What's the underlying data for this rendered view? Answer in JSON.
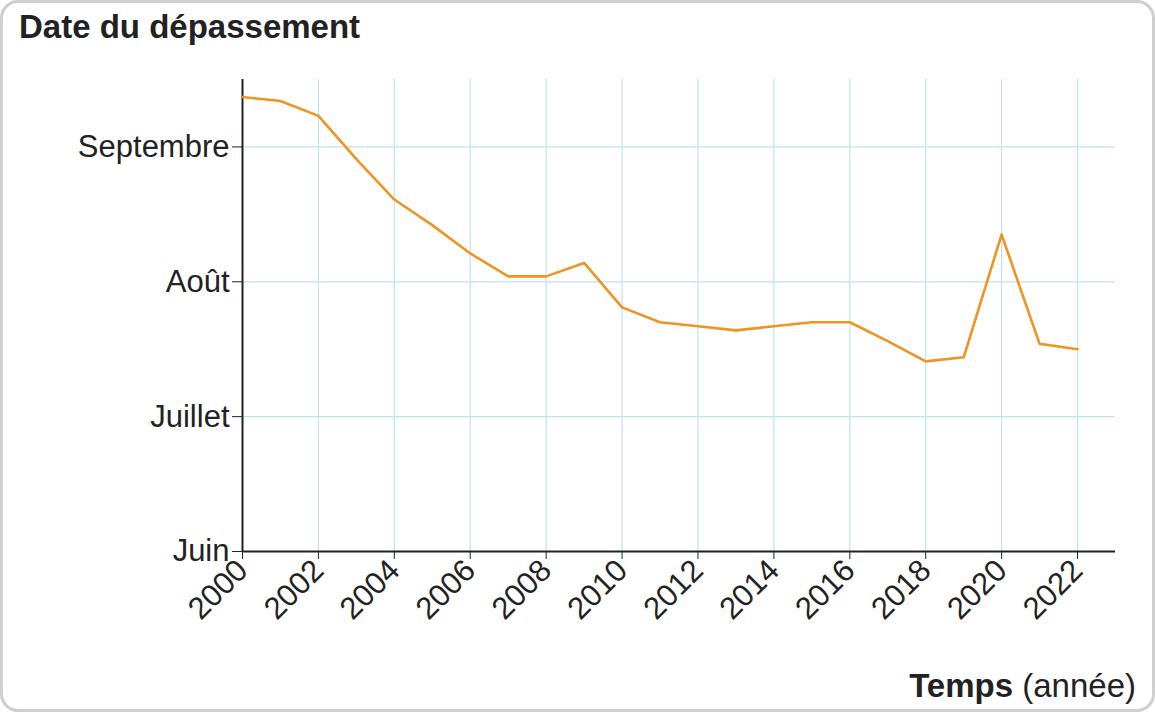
{
  "chart_data": {
    "type": "line",
    "y_label": "Date du dépassement",
    "x_label": "Temps (année)",
    "x": [
      2000,
      2001,
      2002,
      2003,
      2004,
      2005,
      2006,
      2007,
      2008,
      2009,
      2010,
      2011,
      2012,
      2013,
      2014,
      2015,
      2016,
      2017,
      2018,
      2019,
      2020,
      2021,
      2022
    ],
    "values": [
      9.37,
      9.34,
      9.23,
      8.91,
      8.61,
      8.42,
      8.21,
      8.04,
      8.04,
      8.14,
      7.81,
      7.7,
      7.67,
      7.64,
      7.67,
      7.7,
      7.7,
      7.56,
      7.41,
      7.44,
      8.35,
      7.54,
      7.5
    ],
    "color": "#ef9321",
    "xlim": [
      2000,
      2023
    ],
    "xticks": [
      2000,
      2002,
      2004,
      2006,
      2008,
      2010,
      2012,
      2014,
      2016,
      2018,
      2020,
      2022
    ],
    "ylim": [
      6,
      9.5
    ],
    "yticks": [
      {
        "value": 6,
        "label": "Juin"
      },
      {
        "value": 7,
        "label": "Juillet"
      },
      {
        "value": 8,
        "label": "Août"
      },
      {
        "value": 9,
        "label": "Septembre"
      }
    ],
    "grid": true
  }
}
